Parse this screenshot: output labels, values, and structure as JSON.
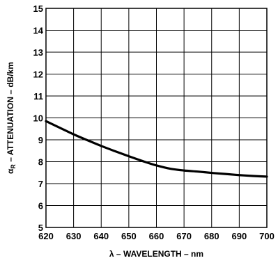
{
  "chart_data": {
    "type": "line",
    "title": "",
    "xlabel": "λ – WAVELENGTH – nm",
    "ylabel": {
      "symbol": "α",
      "subscript": "R",
      "text": " – ATTENUATION – dB/km"
    },
    "xlim": [
      620,
      700
    ],
    "ylim": [
      5,
      15
    ],
    "xticks": [
      "620",
      "630",
      "640",
      "650",
      "660",
      "670",
      "680",
      "690",
      "700"
    ],
    "yticks": [
      "5",
      "6",
      "7",
      "8",
      "9",
      "10",
      "11",
      "12",
      "13",
      "14",
      "15"
    ],
    "grid": true,
    "legend": "none",
    "series": [
      {
        "color": "#000000",
        "x": [
          620,
          625,
          630,
          635,
          640,
          645,
          650,
          655,
          660,
          665,
          670,
          675,
          680,
          685,
          690,
          695,
          700
        ],
        "y": [
          9.85,
          9.55,
          9.25,
          8.98,
          8.72,
          8.48,
          8.25,
          8.03,
          7.83,
          7.68,
          7.6,
          7.55,
          7.49,
          7.44,
          7.39,
          7.35,
          7.32
        ]
      }
    ]
  }
}
